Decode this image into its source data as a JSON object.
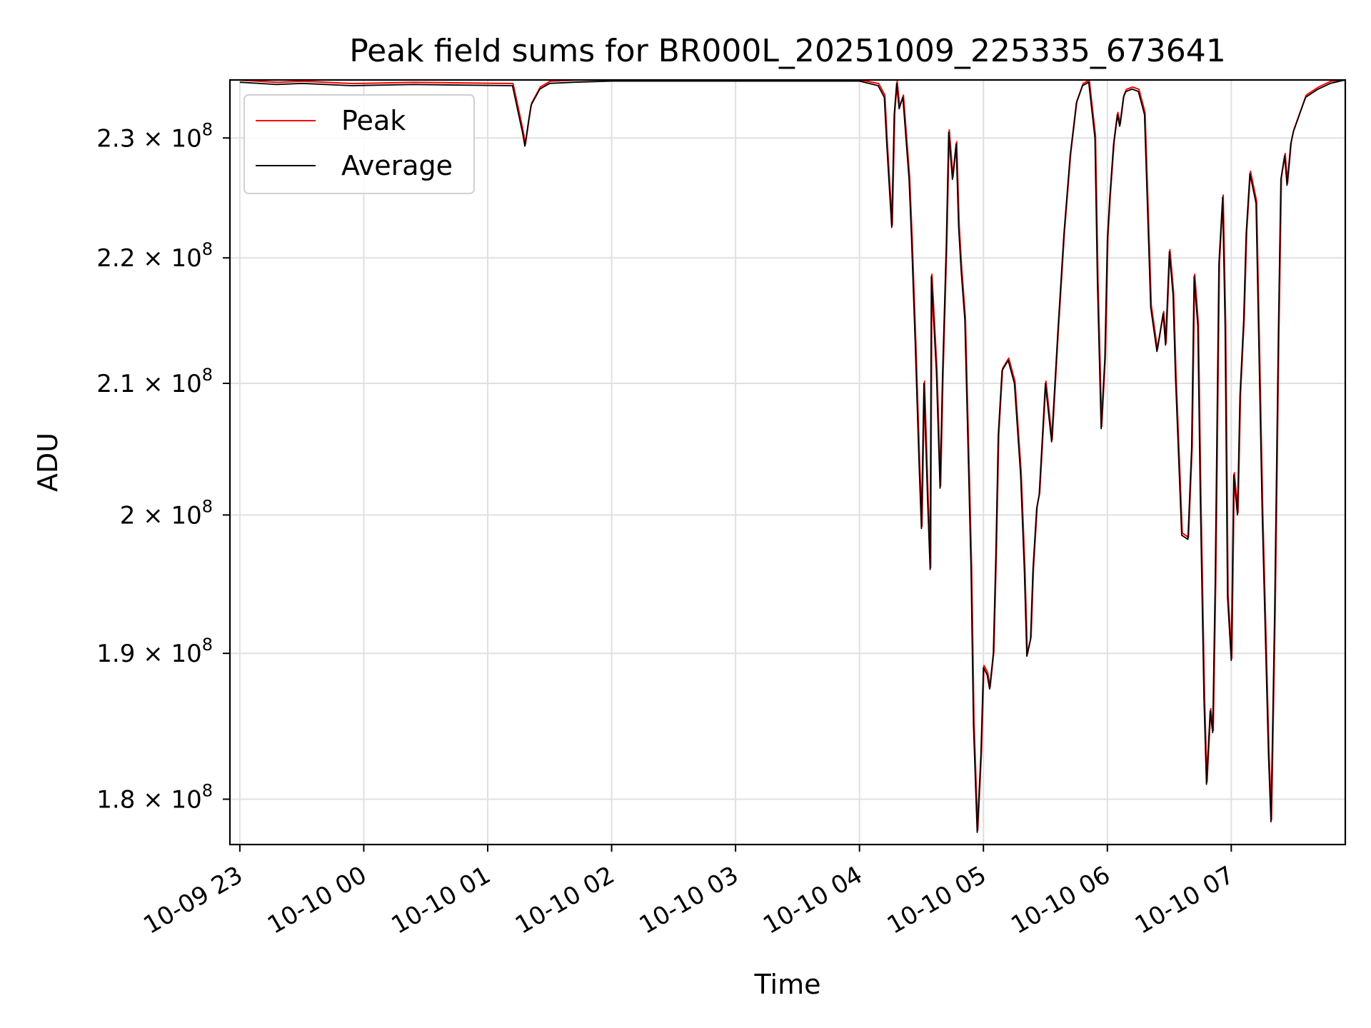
{
  "chart_data": {
    "type": "line",
    "title": "Peak field sums for BR000L_20251009_225335_673641",
    "xlabel": "Time",
    "ylabel": "ADU",
    "x_tick_labels": [
      "10-09 23",
      "10-10 00",
      "10-10 01",
      "10-10 02",
      "10-10 03",
      "10-10 04",
      "10-10 05",
      "10-10 06",
      "10-10 07"
    ],
    "x_ticks_hours": [
      0,
      1,
      2,
      3,
      4,
      5,
      6,
      7,
      8
    ],
    "x_unit": "hours after 2025-10-09 23:00",
    "xlim": [
      -0.08,
      8.92
    ],
    "y_scale": "log",
    "y_ticks": [
      180000000,
      190000000,
      200000000,
      210000000,
      220000000,
      230000000
    ],
    "y_tick_labels": [
      {
        "mantissa": "1.8",
        "times": "×",
        "base": "10",
        "exp": "8"
      },
      {
        "mantissa": "1.9",
        "times": "×",
        "base": "10",
        "exp": "8"
      },
      {
        "mantissa": "2",
        "times": "×",
        "base": "10",
        "exp": "8"
      },
      {
        "mantissa": "2.1",
        "times": "×",
        "base": "10",
        "exp": "8"
      },
      {
        "mantissa": "2.2",
        "times": "×",
        "base": "10",
        "exp": "8"
      },
      {
        "mantissa": "2.3",
        "times": "×",
        "base": "10",
        "exp": "8"
      }
    ],
    "ylim": [
      177000000,
      235000000
    ],
    "grid": true,
    "legend_position": "upper-left",
    "series": [
      {
        "name": "Peak",
        "color": "#ff0000",
        "x": [],
        "y": []
      },
      {
        "name": "Average",
        "color": "#000000",
        "x": [
          0.0,
          0.3,
          0.5,
          0.9,
          1.4,
          2.2,
          2.28,
          2.3,
          2.33,
          2.35,
          2.42,
          2.5,
          2.7,
          3.0,
          3.5,
          4.0,
          4.5,
          5.0,
          5.15,
          5.2,
          5.22,
          5.26,
          5.28,
          5.3,
          5.32,
          5.35,
          5.4,
          5.42,
          5.45,
          5.48,
          5.5,
          5.52,
          5.55,
          5.57,
          5.58,
          5.62,
          5.65,
          5.67,
          5.7,
          5.72,
          5.75,
          5.78,
          5.8,
          5.82,
          5.85,
          5.88,
          5.9,
          5.92,
          5.95,
          5.98,
          6.0,
          6.03,
          6.05,
          6.08,
          6.1,
          6.12,
          6.15,
          6.2,
          6.25,
          6.3,
          6.33,
          6.35,
          6.38,
          6.4,
          6.43,
          6.45,
          6.5,
          6.55,
          6.6,
          6.65,
          6.7,
          6.75,
          6.8,
          6.85,
          6.9,
          6.92,
          6.95,
          6.98,
          7.0,
          7.02,
          7.05,
          7.08,
          7.1,
          7.13,
          7.15,
          7.2,
          7.25,
          7.3,
          7.35,
          7.4,
          7.45,
          7.47,
          7.5,
          7.53,
          7.55,
          7.6,
          7.65,
          7.68,
          7.7,
          7.73,
          7.75,
          7.78,
          7.8,
          7.83,
          7.85,
          7.87,
          7.9,
          7.93,
          7.95,
          7.97,
          8.0,
          8.02,
          8.05,
          8.07,
          8.1,
          8.12,
          8.15,
          8.2,
          8.25,
          8.3,
          8.32,
          8.35,
          8.38,
          8.4,
          8.43,
          8.45,
          8.48,
          8.5,
          8.55,
          8.6,
          8.7,
          8.8,
          8.92
        ],
        "y": [
          234800000,
          234600000,
          234700000,
          234500000,
          234600000,
          234500000,
          230500000,
          229300000,
          231500000,
          232800000,
          234200000,
          234700000,
          234800000,
          234900000,
          234900000,
          234900000,
          234900000,
          234900000,
          234500000,
          233500000,
          229500000,
          222500000,
          232000000,
          234700000,
          232500000,
          233500000,
          226500000,
          221500000,
          213000000,
          204000000,
          199000000,
          210000000,
          201000000,
          196000000,
          218500000,
          211000000,
          202000000,
          210500000,
          221000000,
          230500000,
          226500000,
          229500000,
          222500000,
          219000000,
          215000000,
          203500000,
          196000000,
          185000000,
          177800000,
          183000000,
          189000000,
          188500000,
          187500000,
          190000000,
          197000000,
          206000000,
          211000000,
          211800000,
          210000000,
          203000000,
          196000000,
          189800000,
          191000000,
          196000000,
          200500000,
          201500000,
          210000000,
          205500000,
          214000000,
          222000000,
          228500000,
          233000000,
          234500000,
          234800000,
          230000000,
          218000000,
          206500000,
          212000000,
          221500000,
          225000000,
          229500000,
          232000000,
          231000000,
          233500000,
          234000000,
          234200000,
          234000000,
          232000000,
          216000000,
          212500000,
          215500000,
          213000000,
          220500000,
          217000000,
          210500000,
          198500000,
          198200000,
          205000000,
          218500000,
          214500000,
          201500000,
          186800000,
          181000000,
          186000000,
          184500000,
          195000000,
          219500000,
          225000000,
          214500000,
          194000000,
          189500000,
          203000000,
          200000000,
          209000000,
          215000000,
          222000000,
          227000000,
          224500000,
          200000000,
          183000000,
          178500000,
          193000000,
          214000000,
          226500000,
          228500000,
          226000000,
          229500000,
          230500000,
          232000000,
          233500000,
          234200000,
          234700000,
          235000000
        ]
      }
    ]
  }
}
